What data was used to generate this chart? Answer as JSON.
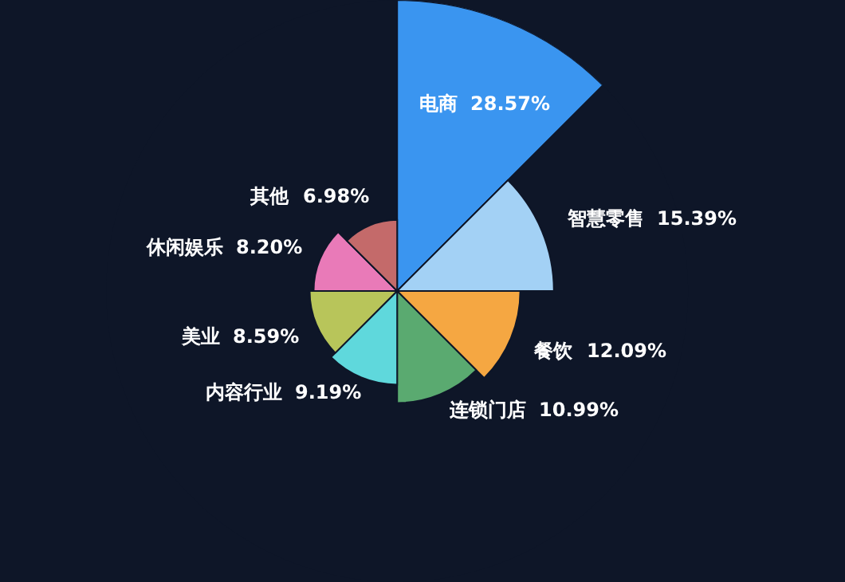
{
  "chart_data": {
    "type": "other",
    "categories": [
      "电商",
      "智慧零售",
      "餐饮",
      "连锁门店",
      "内容行业",
      "美业",
      "休闲娱乐",
      "其他"
    ],
    "values": [
      28.57,
      15.39,
      12.09,
      10.99,
      9.19,
      8.59,
      8.2,
      6.98
    ],
    "colors": [
      "#3a95f0",
      "#a3d1f5",
      "#f5a742",
      "#5aaa70",
      "#5fd8dc",
      "#b8c55a",
      "#e97ab8",
      "#c46a6a"
    ],
    "value_labels": [
      "28.57%",
      "15.39%",
      "12.09%",
      "10.99%",
      "9.19%",
      "8.59%",
      "8.20%",
      "6.98%"
    ],
    "legend": false
  }
}
